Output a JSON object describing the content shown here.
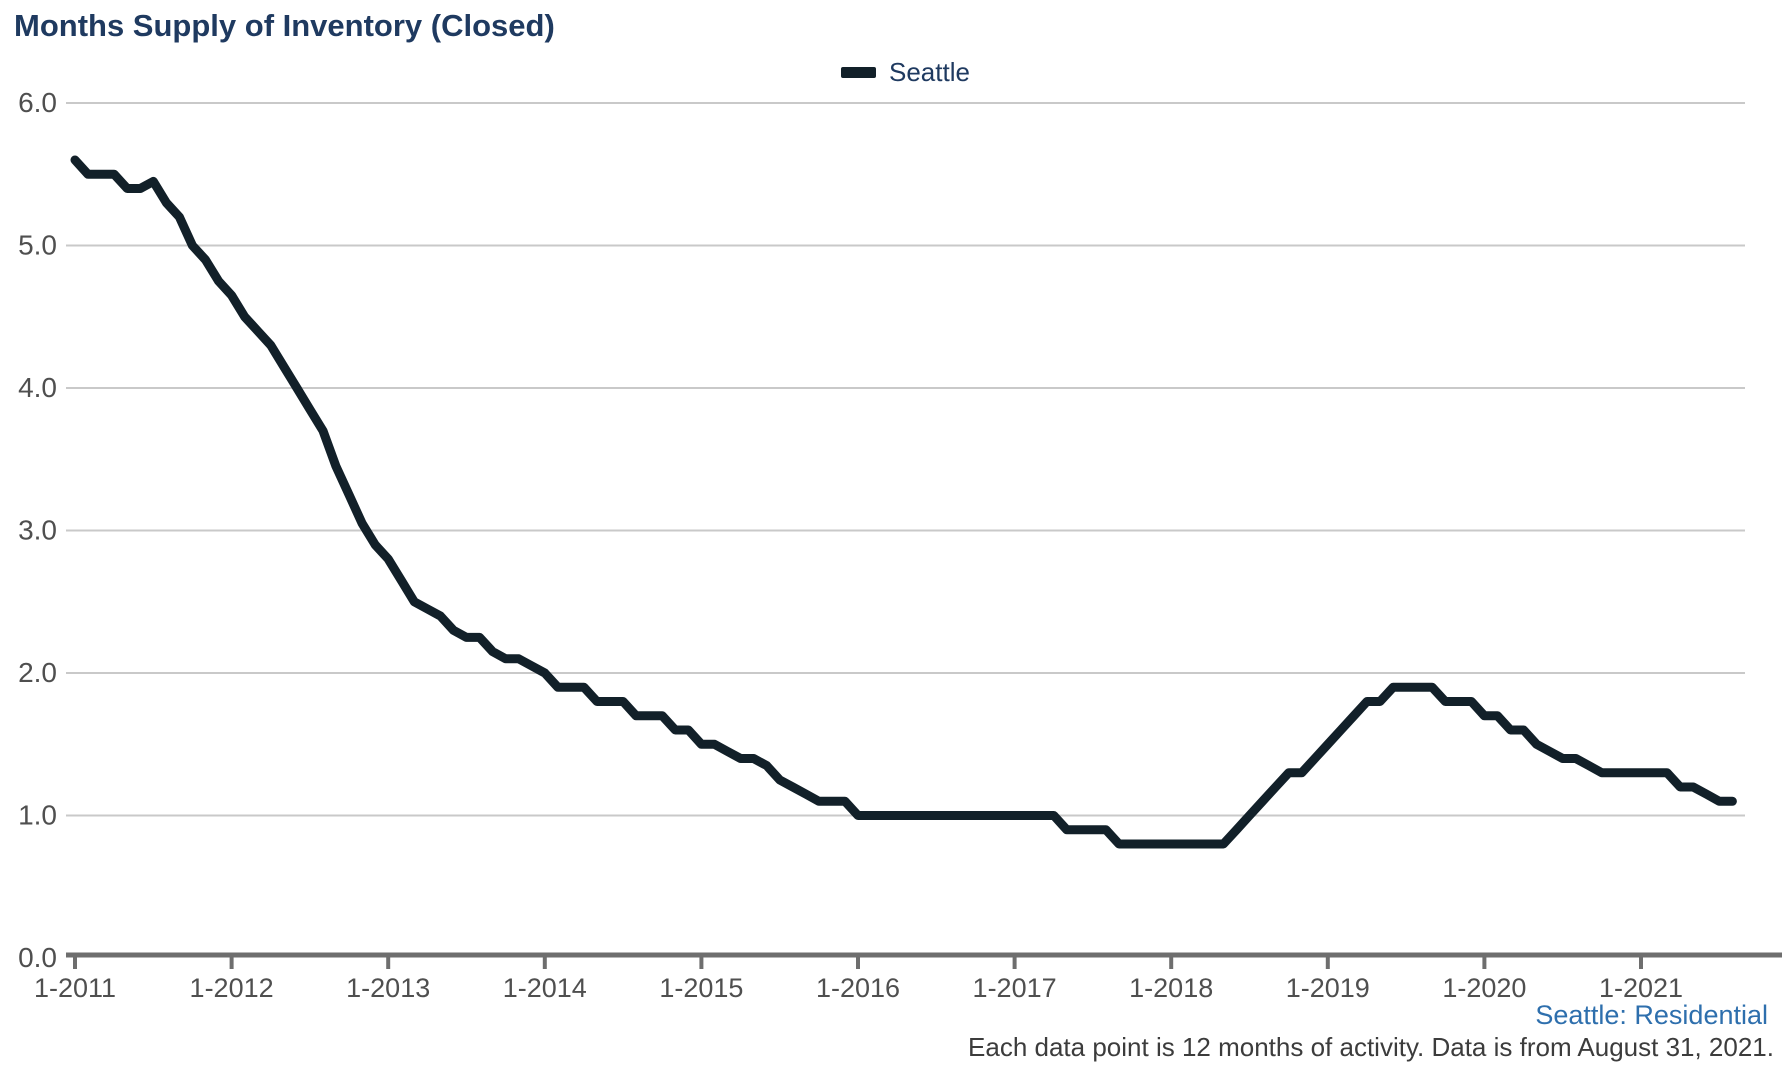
{
  "title": "Months Supply of Inventory (Closed)",
  "legend": {
    "label": "Seattle",
    "swatch_color": "#122029"
  },
  "footer": {
    "line1": "Seattle: Residential",
    "line2": "Each data point is 12 months of activity. Data is from August 31, 2021."
  },
  "colors": {
    "title_text": "#1f3a60",
    "series_line": "#122029",
    "gridline": "#c9c9c9",
    "axis_line": "#6e6e6e",
    "axis_text": "#4f4f4f",
    "footer_blue": "#2e6fad",
    "footer_gray": "#3c3c3c"
  },
  "chart_data": {
    "type": "line",
    "title": "Months Supply of Inventory (Closed)",
    "xlabel": "",
    "ylabel": "",
    "ylim": [
      0,
      6
    ],
    "grid": "horizontal",
    "legend_position": "top-center",
    "y_tick_labels": [
      "6.0",
      "5.0",
      "4.0",
      "3.0",
      "2.0",
      "1.0",
      "0.0"
    ],
    "y_tick_values": [
      6,
      5,
      4,
      3,
      2,
      1,
      0
    ],
    "x_tick_labels": [
      "1-2011",
      "1-2012",
      "1-2013",
      "1-2014",
      "1-2015",
      "1-2016",
      "1-2017",
      "1-2018",
      "1-2019",
      "1-2020",
      "1-2021"
    ],
    "x_range_note": "monthly points, January 2011 through August 2021",
    "series": [
      {
        "name": "Seattle",
        "color": "#122029",
        "start_month": "2011-01",
        "end_month": "2021-08",
        "values": [
          5.6,
          5.5,
          5.5,
          5.5,
          5.4,
          5.4,
          5.45,
          5.3,
          5.2,
          5.0,
          4.9,
          4.75,
          4.65,
          4.5,
          4.4,
          4.3,
          4.15,
          4.0,
          3.85,
          3.7,
          3.45,
          3.25,
          3.05,
          2.9,
          2.8,
          2.65,
          2.5,
          2.45,
          2.4,
          2.3,
          2.25,
          2.25,
          2.15,
          2.1,
          2.1,
          2.05,
          2.0,
          1.9,
          1.9,
          1.9,
          1.8,
          1.8,
          1.8,
          1.7,
          1.7,
          1.7,
          1.6,
          1.6,
          1.5,
          1.5,
          1.45,
          1.4,
          1.4,
          1.35,
          1.25,
          1.2,
          1.15,
          1.1,
          1.1,
          1.1,
          1.0,
          1.0,
          1.0,
          1.0,
          1.0,
          1.0,
          1.0,
          1.0,
          1.0,
          1.0,
          1.0,
          1.0,
          1.0,
          1.0,
          1.0,
          1.0,
          0.9,
          0.9,
          0.9,
          0.9,
          0.8,
          0.8,
          0.8,
          0.8,
          0.8,
          0.8,
          0.8,
          0.8,
          0.8,
          0.9,
          1.0,
          1.1,
          1.2,
          1.3,
          1.3,
          1.4,
          1.5,
          1.6,
          1.7,
          1.8,
          1.8,
          1.9,
          1.9,
          1.9,
          1.9,
          1.8,
          1.8,
          1.8,
          1.7,
          1.7,
          1.6,
          1.6,
          1.5,
          1.45,
          1.4,
          1.4,
          1.35,
          1.3,
          1.3,
          1.3,
          1.3,
          1.3,
          1.3,
          1.2,
          1.2,
          1.15,
          1.1,
          1.1
        ]
      }
    ]
  }
}
